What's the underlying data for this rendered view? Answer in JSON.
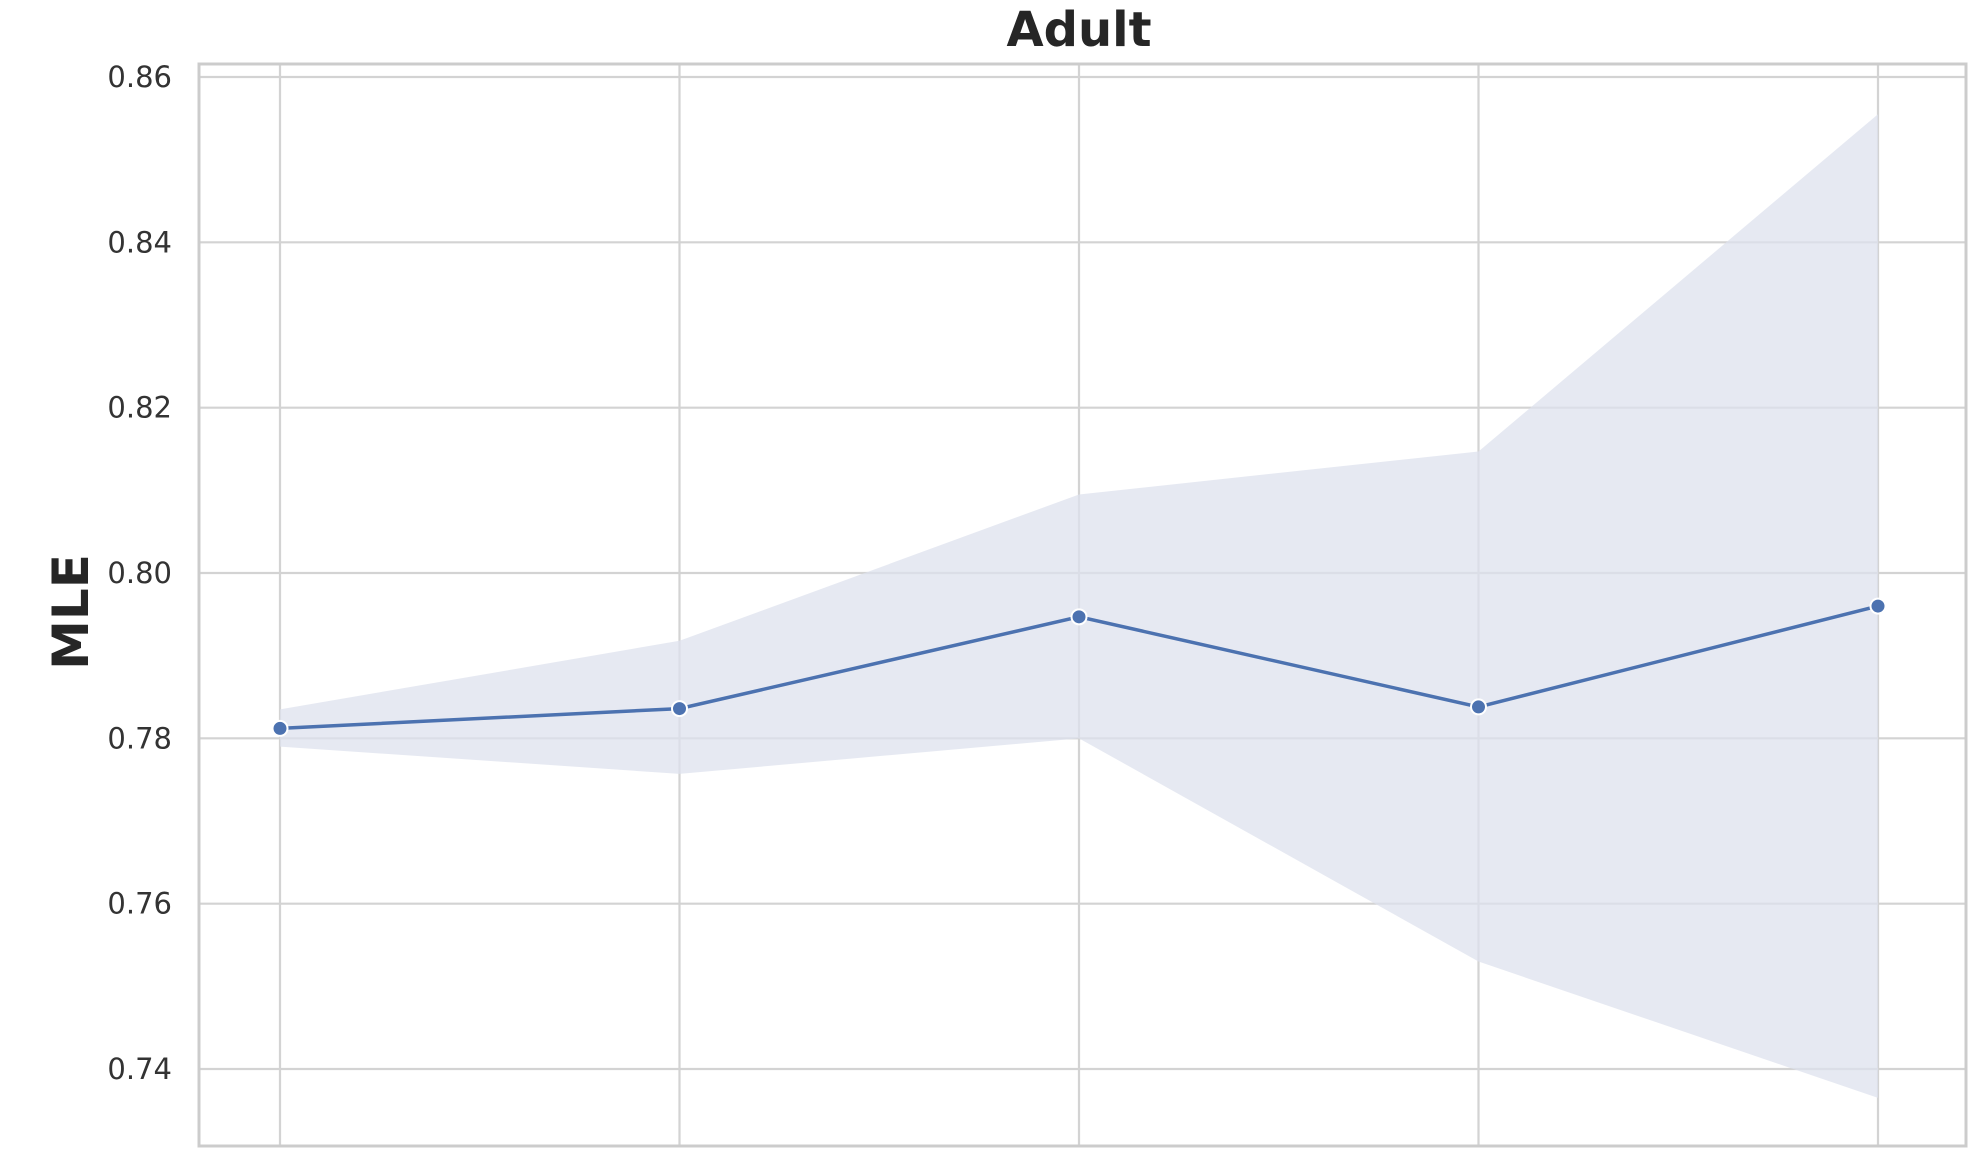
{
  "chart_data": {
    "type": "line",
    "title": "Adult",
    "ylabel": "MLE",
    "xlabel": "",
    "ylim": [
      0.729,
      0.8615
    ],
    "yticks": [
      "0.74",
      "0.76",
      "0.78",
      "0.80",
      "0.82",
      "0.84",
      "0.86"
    ],
    "grid": true,
    "colors": {
      "line": "#4c72b0",
      "band": "#dde2ee"
    },
    "series": [
      {
        "x": [
          1,
          2,
          3,
          4,
          5
        ],
        "values": [
          0.7812,
          0.7836,
          0.7947,
          0.7838,
          0.796
        ],
        "upper": [
          0.7835,
          0.7918,
          0.8095,
          0.8147,
          0.8555
        ],
        "lower": [
          0.779,
          0.7757,
          0.78,
          0.753,
          0.7365
        ]
      }
    ]
  }
}
